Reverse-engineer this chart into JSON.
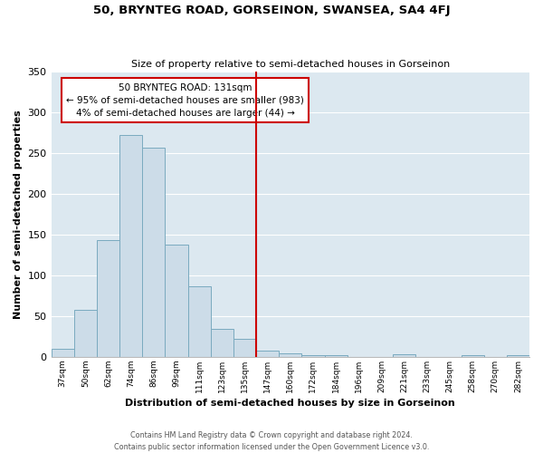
{
  "title": "50, BRYNTEG ROAD, GORSEINON, SWANSEA, SA4 4FJ",
  "subtitle": "Size of property relative to semi-detached houses in Gorseinon",
  "xlabel": "Distribution of semi-detached houses by size in Gorseinon",
  "ylabel": "Number of semi-detached properties",
  "bin_labels": [
    "37sqm",
    "50sqm",
    "62sqm",
    "74sqm",
    "86sqm",
    "99sqm",
    "111sqm",
    "123sqm",
    "135sqm",
    "147sqm",
    "160sqm",
    "172sqm",
    "184sqm",
    "196sqm",
    "209sqm",
    "221sqm",
    "233sqm",
    "245sqm",
    "258sqm",
    "270sqm",
    "282sqm"
  ],
  "bar_values": [
    10,
    58,
    143,
    272,
    257,
    138,
    87,
    34,
    22,
    8,
    4,
    2,
    2,
    0,
    0,
    3,
    0,
    0,
    2,
    0,
    2
  ],
  "bar_color": "#ccdce8",
  "bar_edge_color": "#7aaabf",
  "vline_x": 8.5,
  "vline_color": "#cc0000",
  "annotation_title": "50 BRYNTEG ROAD: 131sqm",
  "annotation_line1": "← 95% of semi-detached houses are smaller (983)",
  "annotation_line2": "4% of semi-detached houses are larger (44) →",
  "annotation_box_color": "#cc0000",
  "ylim": [
    0,
    350
  ],
  "yticks": [
    0,
    50,
    100,
    150,
    200,
    250,
    300,
    350
  ],
  "background_color": "#dce8f0",
  "footer1": "Contains HM Land Registry data © Crown copyright and database right 2024.",
  "footer2": "Contains public sector information licensed under the Open Government Licence v3.0."
}
